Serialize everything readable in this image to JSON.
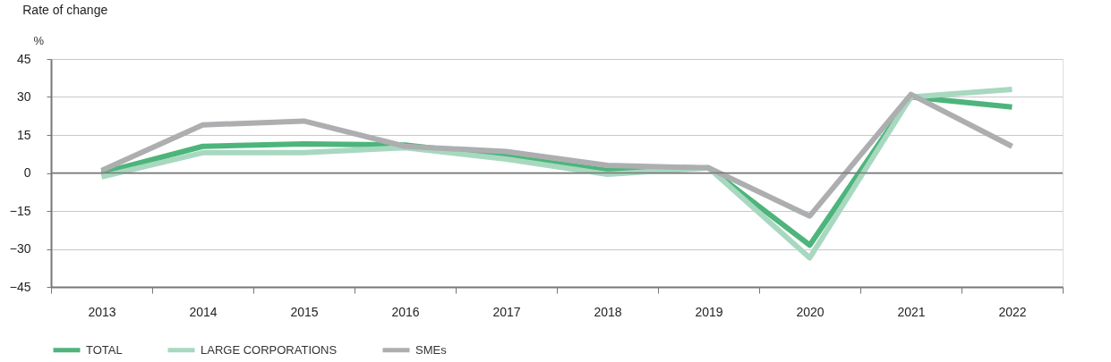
{
  "chart_data": {
    "type": "line",
    "title": "Rate of change",
    "ylabel": "%",
    "categories": [
      "2013",
      "2014",
      "2015",
      "2016",
      "2017",
      "2018",
      "2019",
      "2020",
      "2021",
      "2022"
    ],
    "series": [
      {
        "name": "TOTAL",
        "color": "#4db57b",
        "values": [
          0,
          10.5,
          11.5,
          11,
          6.5,
          1,
          2,
          -28.5,
          30,
          26
        ]
      },
      {
        "name": "LARGE CORPORATIONS",
        "color": "#a8d8c0",
        "values": [
          -1.5,
          8,
          8,
          10,
          5.5,
          -0.5,
          2,
          -33.5,
          30,
          33
        ]
      },
      {
        "name": "SMEs",
        "color": "#adaeb0",
        "values": [
          1,
          19,
          20.5,
          10.5,
          8.5,
          3,
          2,
          -17,
          31,
          10.5
        ]
      }
    ],
    "ylim": [
      -45,
      45
    ],
    "yticks": [
      -45,
      -30,
      -15,
      0,
      15,
      30,
      45
    ],
    "ref_lines": [
      {
        "axis": "y",
        "value": 0,
        "color": "#777777"
      }
    ],
    "grid": "y",
    "legend": "bottom",
    "marker": "none",
    "line_style": "solid"
  }
}
